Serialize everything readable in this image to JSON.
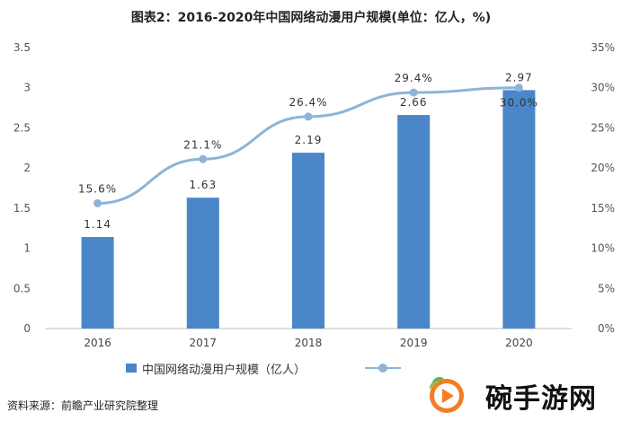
{
  "chart_data": {
    "type": "bar+line",
    "title": "图表2：2016-2020年中国网络动漫用户规模(单位：亿人，%)",
    "categories": [
      "2016",
      "2017",
      "2018",
      "2019",
      "2020"
    ],
    "series": [
      {
        "name": "中国网络动漫用户规模（亿人）",
        "type": "bar",
        "axis": "left",
        "values": [
          1.14,
          1.63,
          2.19,
          2.66,
          2.97
        ],
        "labels": [
          "1.14",
          "1.63",
          "2.19",
          "2.66",
          "2.97"
        ],
        "color": "#4a86c8"
      },
      {
        "name": "",
        "type": "line",
        "axis": "right",
        "values": [
          15.6,
          21.1,
          26.4,
          29.4,
          30.0
        ],
        "labels": [
          "15.6%",
          "21.1%",
          "26.4%",
          "29.4%",
          "30.0%"
        ],
        "color": "#8db3d9"
      }
    ],
    "y_left": {
      "min": 0,
      "max": 3.5,
      "step": 0.5,
      "ticks": [
        "0",
        "0.5",
        "1",
        "1.5",
        "2",
        "2.5",
        "3",
        "3.5"
      ]
    },
    "y_right": {
      "min": 0,
      "max": 35,
      "step": 5,
      "ticks": [
        "0%",
        "5%",
        "10%",
        "15%",
        "20%",
        "25%",
        "30%",
        "35%"
      ]
    },
    "grid": false,
    "legend_position": "bottom"
  },
  "source_note": "资料来源：前瞻产业研究院整理",
  "brand": {
    "text": "碗手游网",
    "logo_icon": "play-leaf-logo"
  }
}
